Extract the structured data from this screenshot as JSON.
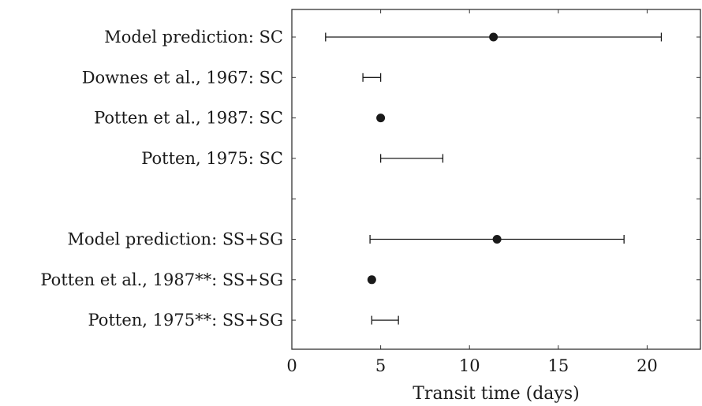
{
  "chart_data": {
    "type": "scatter",
    "xlabel": "Transit time (days)",
    "xlim": [
      0,
      23
    ],
    "xticks": [
      0,
      5,
      10,
      15,
      20
    ],
    "grid": false,
    "rows": [
      {
        "label": "Model prediction: SC",
        "point": 11.35,
        "range": [
          1.9,
          20.8
        ]
      },
      {
        "label": "Downes et al., 1967: SC",
        "point": null,
        "range": [
          4.0,
          5.0
        ]
      },
      {
        "label": "Potten et al., 1987: SC",
        "point": 5.0,
        "range": null
      },
      {
        "label": "Potten, 1975: SC",
        "point": null,
        "range": [
          5.0,
          8.5
        ]
      },
      {
        "label": "",
        "point": null,
        "range": null
      },
      {
        "label": "Model prediction: SS+SG",
        "point": 11.55,
        "range": [
          4.4,
          18.7
        ]
      },
      {
        "label": "Potten et al., 1987**: SS+SG",
        "point": 4.5,
        "range": null
      },
      {
        "label": "Potten, 1975**: SS+SG",
        "point": null,
        "range": [
          4.5,
          6.0
        ]
      }
    ]
  },
  "colors": {
    "ink": "#1a1a1a",
    "frame": "#333333",
    "background": "#ffffff"
  }
}
